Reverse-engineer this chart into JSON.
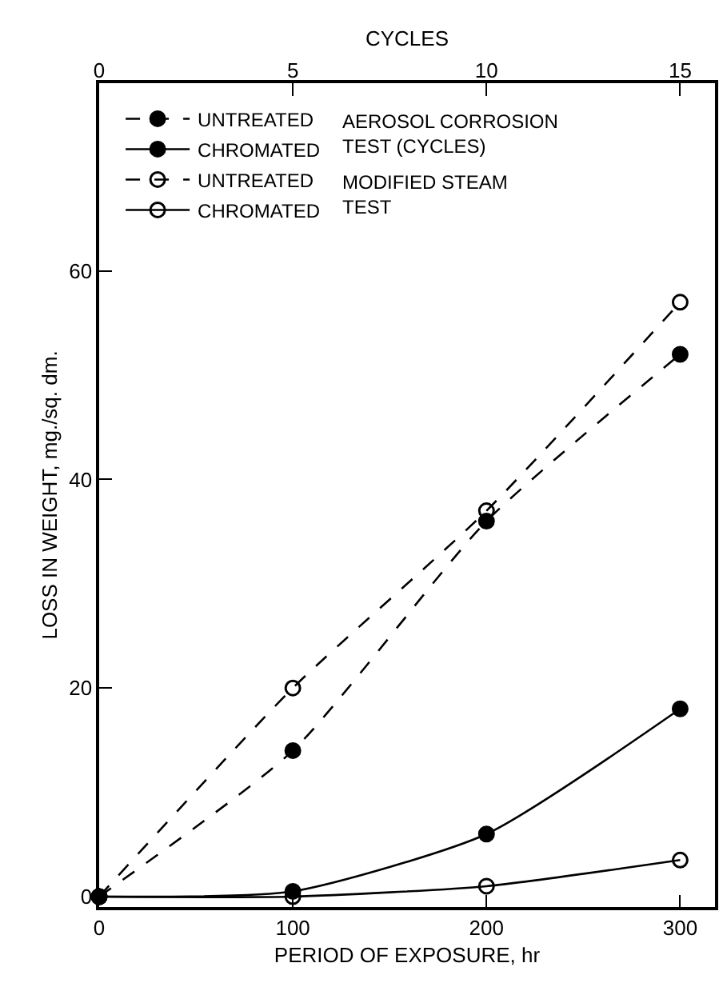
{
  "chart_data": {
    "type": "line",
    "xlabel": "PERIOD OF EXPOSURE, hr",
    "ylabel": "LOSS IN WEIGHT, mg./sq. dm.",
    "x2label": "CYCLES",
    "x": [
      0,
      100,
      200,
      300
    ],
    "series": [
      {
        "name": "UNTREATED",
        "color": "#000000",
        "marker": "circle",
        "line_style": "dashed",
        "values": [
          0,
          14,
          36,
          52
        ]
      },
      {
        "name": "CHROMATED",
        "color": "#000000",
        "marker": "circle",
        "line_style": "solid",
        "values": [
          0,
          0.5,
          6,
          18
        ]
      },
      {
        "name": "UNTREATED",
        "color": "#000000",
        "marker": "circle-open",
        "line_style": "dashed",
        "values": [
          0,
          20,
          37,
          57
        ]
      },
      {
        "name": "CHROMATED",
        "color": "#000000",
        "marker": "circle-open",
        "line_style": "solid",
        "values": [
          0,
          0,
          1,
          3.5
        ]
      }
    ],
    "annotations": [
      "AEROSOL CORROSION\nTEST (CYCLES)",
      "MODIFIED STEAM\nTEST"
    ],
    "xlim": [
      0,
      318
    ],
    "xticks": [
      0,
      100,
      200,
      300
    ],
    "x2lim": [
      0,
      15.9
    ],
    "x2ticks": [
      0,
      5,
      10,
      15
    ],
    "ylim": [
      -1,
      78
    ],
    "yticks": [
      0,
      20,
      40,
      60
    ],
    "legend": "top left"
  }
}
